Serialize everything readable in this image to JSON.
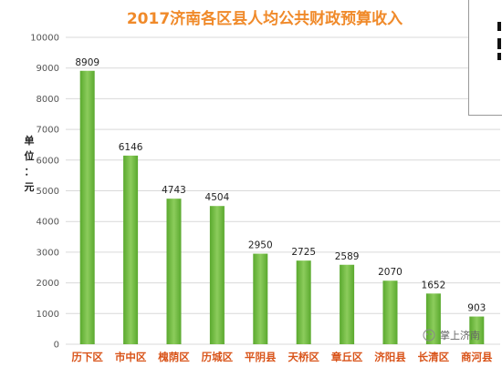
{
  "chart_data": {
    "type": "bar",
    "title": "2017济南各区县人均公共财政预算收入",
    "ylabel": "单位：元",
    "ylim": [
      0,
      10000
    ],
    "yticks": [
      0,
      1000,
      2000,
      3000,
      4000,
      5000,
      6000,
      7000,
      8000,
      9000,
      10000
    ],
    "grid": true,
    "categories": [
      "历下区",
      "市中区",
      "槐荫区",
      "历城区",
      "平阴县",
      "天桥区",
      "章丘区",
      "济阳县",
      "长清区",
      "商河县"
    ],
    "values": [
      8909,
      6146,
      4743,
      4504,
      2950,
      2725,
      2589,
      2070,
      1652,
      903
    ],
    "colors": {
      "bar": "#6fbf3f",
      "bar_light": "#a3d97a",
      "title": "#f08a2a",
      "category": "#d9541a",
      "grid": "#d9d9d9"
    }
  },
  "watermark": {
    "text": "掌上济南",
    "icon": "wechat-icon"
  }
}
